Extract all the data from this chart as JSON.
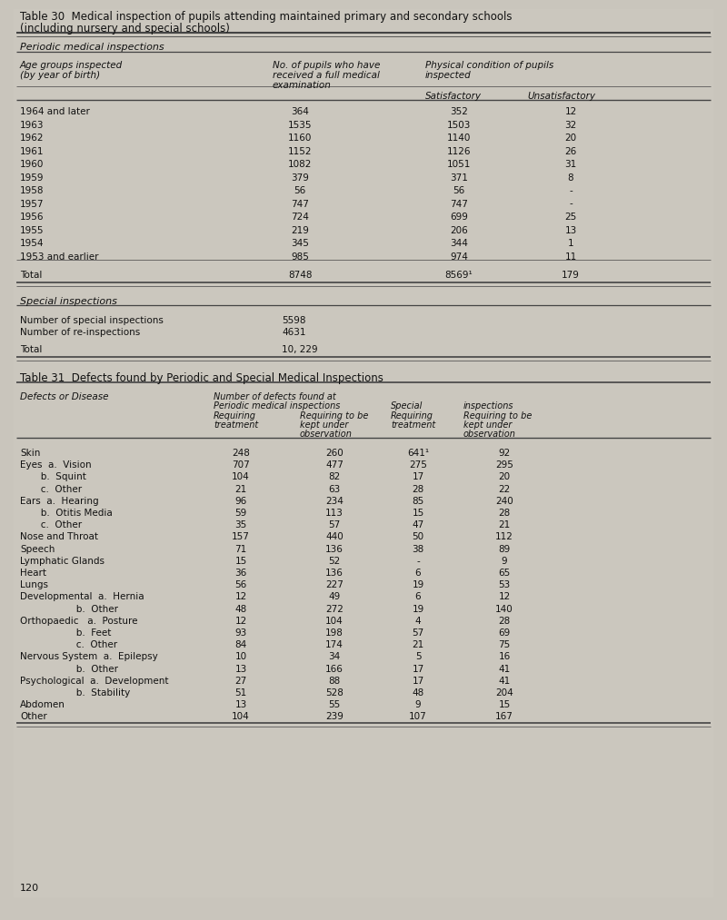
{
  "bg_color": "#c9c5bc",
  "title30_line1": "Table 30  Medical inspection of pupils attending maintained primary and secondary schools",
  "title30_line2": "(including nursery and special schools)",
  "section1_label": "Periodic medical inspections",
  "t30_rows": [
    [
      "1964 and later",
      "364",
      "352",
      "12"
    ],
    [
      "1963",
      "1535",
      "1503",
      "32"
    ],
    [
      "1962",
      "1160",
      "1140",
      "20"
    ],
    [
      "1961",
      "1152",
      "1126",
      "26"
    ],
    [
      "1960",
      "1082",
      "1051",
      "31"
    ],
    [
      "1959",
      "379",
      "371",
      "8"
    ],
    [
      "1958",
      "56",
      "56",
      "-"
    ],
    [
      "1957",
      "747",
      "747",
      "-"
    ],
    [
      "1956",
      "724",
      "699",
      "25"
    ],
    [
      "1955",
      "219",
      "206",
      "13"
    ],
    [
      "1954",
      "345",
      "344",
      "1"
    ],
    [
      "1953 and earlier",
      "985",
      "974",
      "11"
    ]
  ],
  "t30_total": [
    "Total",
    "8748",
    "8569¹",
    "179"
  ],
  "section2_label": "Special inspections",
  "special_rows": [
    [
      "Number of special inspections",
      "5598"
    ],
    [
      "Number of re-inspections",
      "4631"
    ]
  ],
  "special_total": [
    "Total",
    "10, 229"
  ],
  "title31": "Table 31  Defects found by Periodic and Special Medical Inspections",
  "t31_rows": [
    [
      "Skin",
      "248",
      "260",
      "641¹",
      "92"
    ],
    [
      "Eyes  a.  Vision",
      "707",
      "477",
      "275",
      "295"
    ],
    [
      "       b.  Squint",
      "104",
      "82",
      "17",
      "20"
    ],
    [
      "       c.  Other",
      "21",
      "63",
      "28",
      "22"
    ],
    [
      "Ears  a.  Hearing",
      "96",
      "234",
      "85",
      "240"
    ],
    [
      "       b.  Otitis Media",
      "59",
      "113",
      "15",
      "28"
    ],
    [
      "       c.  Other",
      "35",
      "57",
      "47",
      "21"
    ],
    [
      "Nose and Throat",
      "157",
      "440",
      "50",
      "112"
    ],
    [
      "Speech",
      "71",
      "136",
      "38",
      "89"
    ],
    [
      "Lymphatic Glands",
      "15",
      "52",
      "-",
      "9"
    ],
    [
      "Heart",
      "36",
      "136",
      "6",
      "65"
    ],
    [
      "Lungs",
      "56",
      "227",
      "19",
      "53"
    ],
    [
      "Developmental  a.  Hernia",
      "12",
      "49",
      "6",
      "12"
    ],
    [
      "                   b.  Other",
      "48",
      "272",
      "19",
      "140"
    ],
    [
      "Orthopaedic   a.  Posture",
      "12",
      "104",
      "4",
      "28"
    ],
    [
      "                   b.  Feet",
      "93",
      "198",
      "57",
      "69"
    ],
    [
      "                   c.  Other",
      "84",
      "174",
      "21",
      "75"
    ],
    [
      "Nervous System  a.  Epilepsy",
      "10",
      "34",
      "5",
      "16"
    ],
    [
      "                   b.  Other",
      "13",
      "166",
      "17",
      "41"
    ],
    [
      "Psychological  a.  Development",
      "27",
      "88",
      "17",
      "41"
    ],
    [
      "                   b.  Stability",
      "51",
      "528",
      "48",
      "204"
    ],
    [
      "Abdomen",
      "13",
      "55",
      "9",
      "15"
    ],
    [
      "Other",
      "104",
      "239",
      "107",
      "167"
    ]
  ],
  "page_number": "120"
}
